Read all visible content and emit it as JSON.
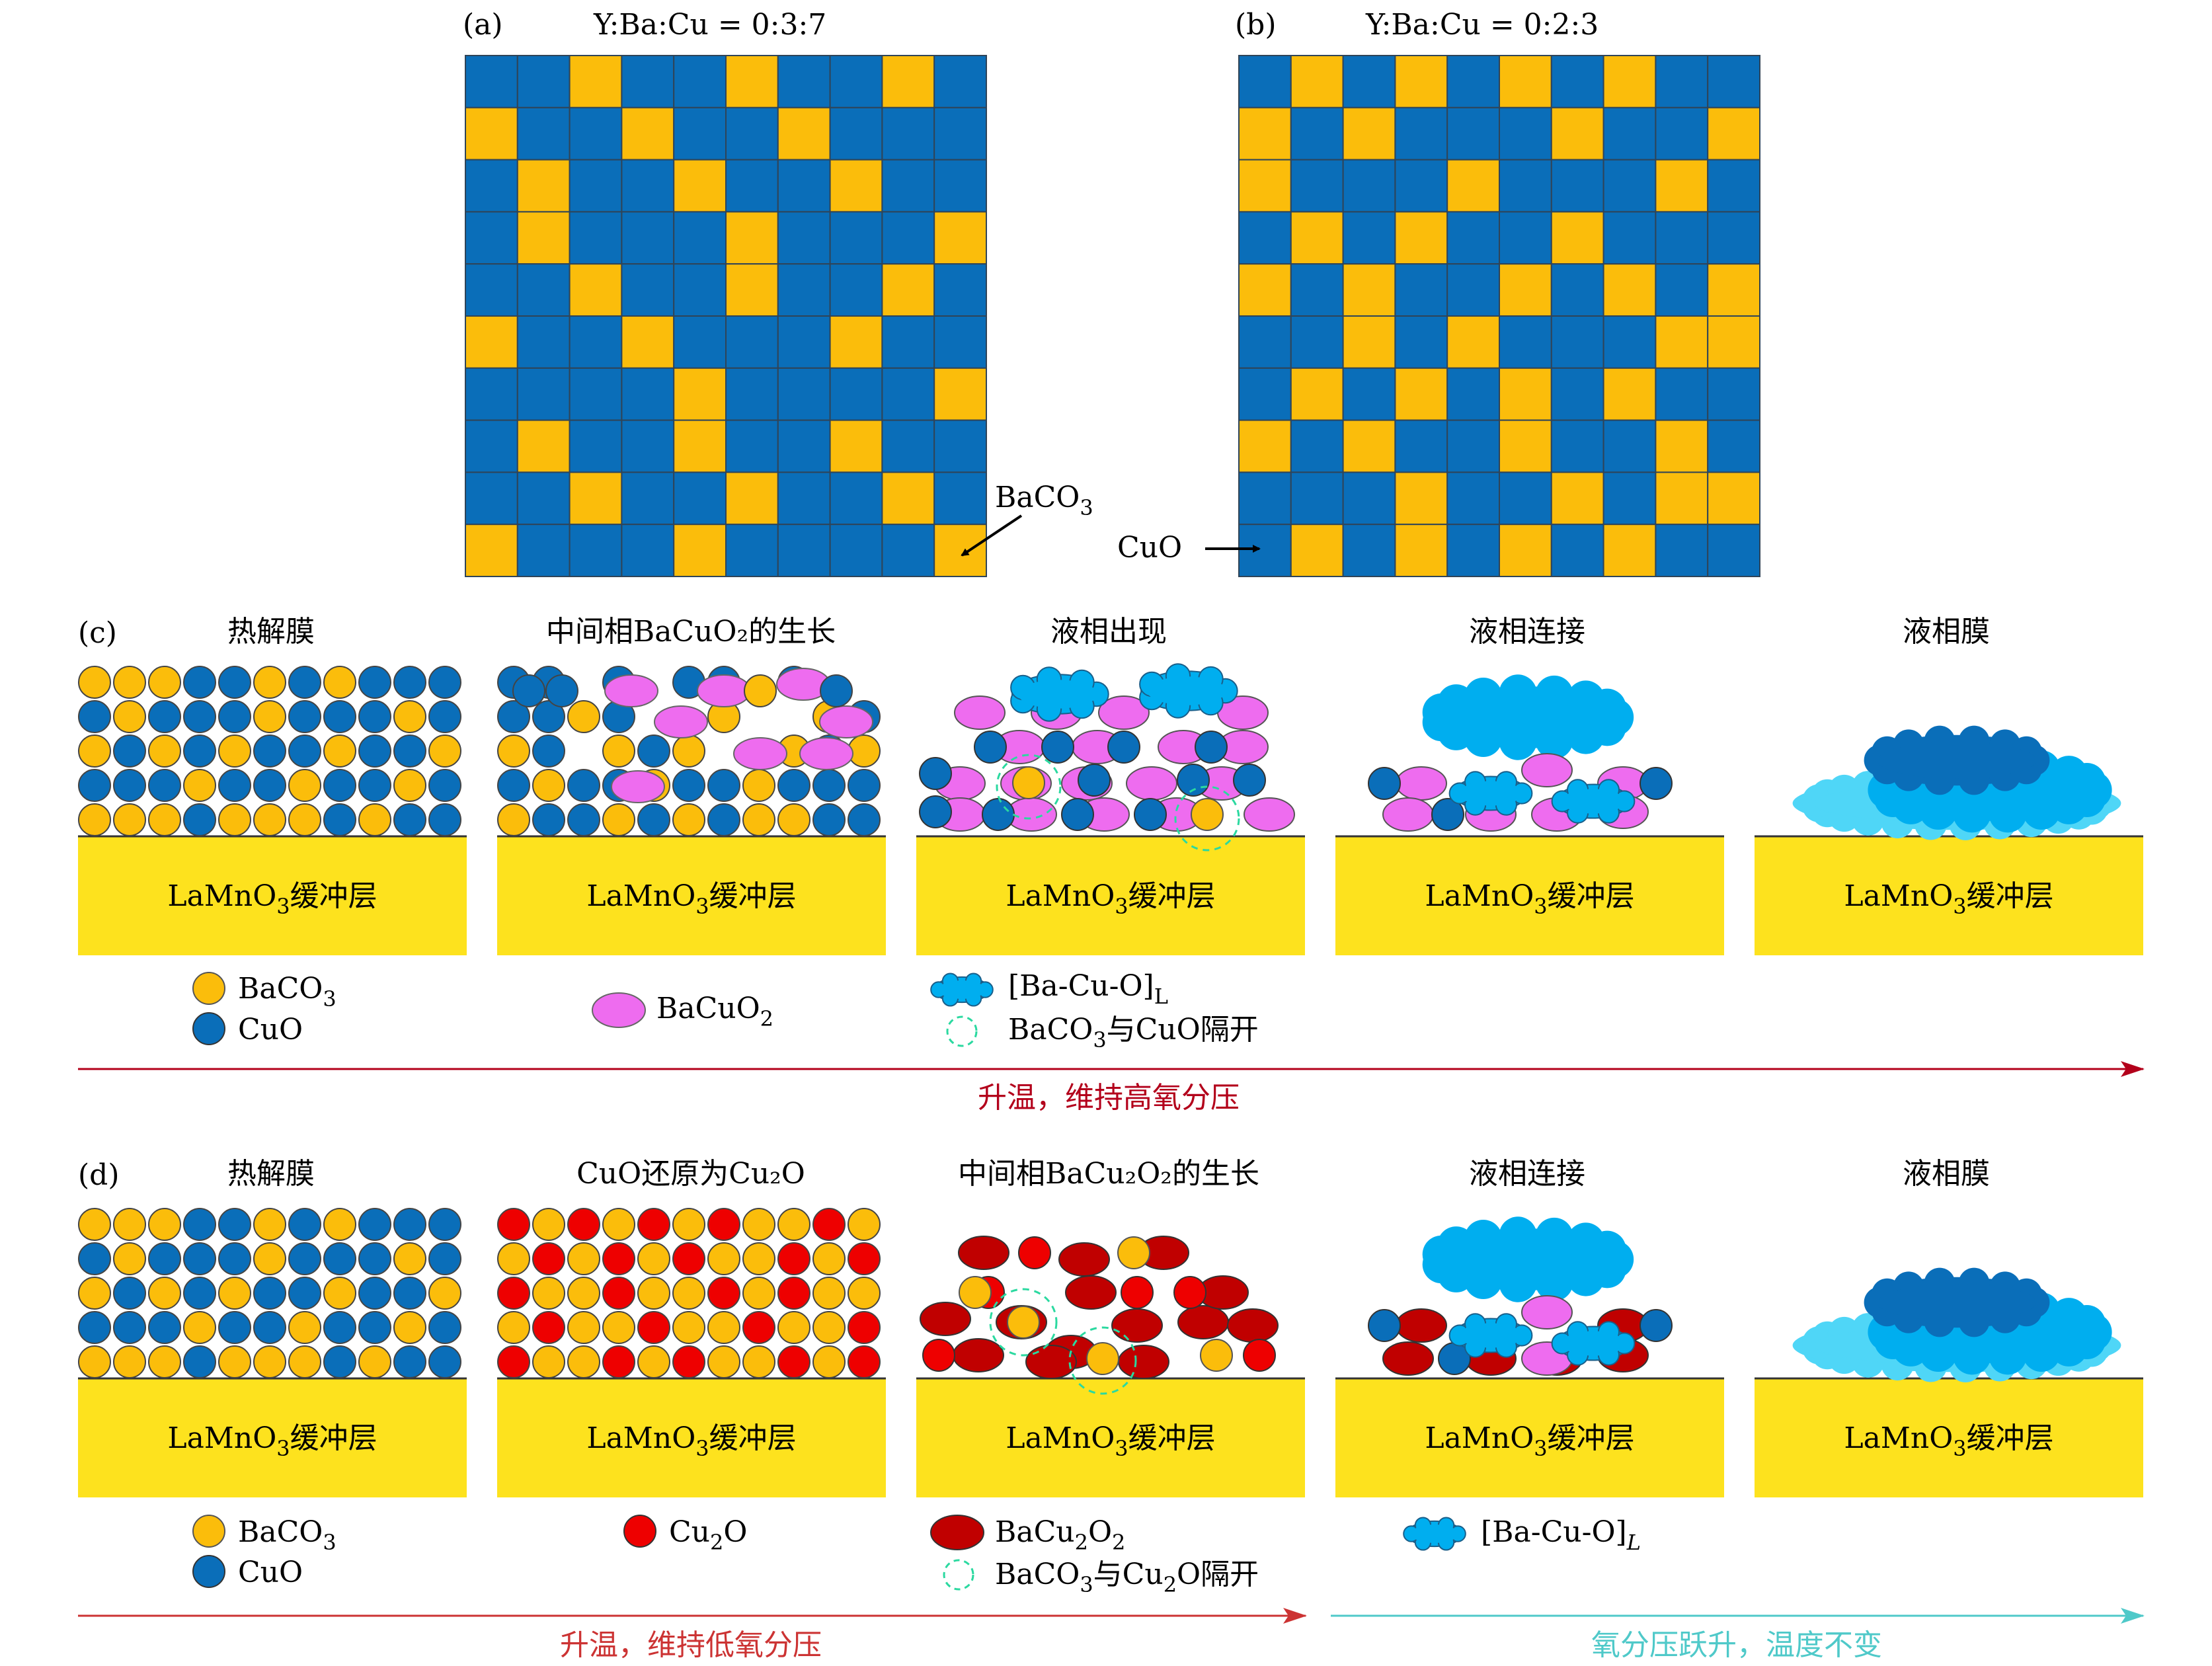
{
  "panel_a": {
    "label": "(a)",
    "ratio": "Y:Ba:Cu = 0:3:7",
    "pointer_label_main": "BaCO",
    "pointer_label_sub": "3",
    "grid": [
      [
        0,
        0,
        1,
        0,
        0,
        1,
        0,
        0,
        1,
        0
      ],
      [
        1,
        0,
        0,
        1,
        0,
        0,
        1,
        0,
        0,
        0
      ],
      [
        0,
        1,
        0,
        0,
        1,
        0,
        0,
        1,
        0,
        0
      ],
      [
        0,
        1,
        0,
        0,
        0,
        1,
        0,
        0,
        0,
        1
      ],
      [
        0,
        0,
        1,
        0,
        0,
        1,
        0,
        0,
        1,
        0
      ],
      [
        1,
        0,
        0,
        1,
        0,
        0,
        0,
        1,
        0,
        0
      ],
      [
        0,
        0,
        0,
        0,
        1,
        0,
        0,
        0,
        0,
        1
      ],
      [
        0,
        1,
        0,
        0,
        1,
        0,
        0,
        1,
        0,
        0
      ],
      [
        0,
        0,
        1,
        0,
        0,
        1,
        0,
        0,
        1,
        0
      ],
      [
        1,
        0,
        0,
        0,
        1,
        0,
        0,
        0,
        0,
        1
      ]
    ]
  },
  "panel_b": {
    "label": "(b)",
    "ratio": "Y:Ba:Cu = 0:2:3",
    "pointer_label": "CuO",
    "grid": [
      [
        0,
        1,
        0,
        1,
        0,
        1,
        0,
        1,
        0,
        0
      ],
      [
        1,
        0,
        1,
        0,
        0,
        0,
        1,
        0,
        0,
        1
      ],
      [
        1,
        0,
        0,
        0,
        1,
        0,
        0,
        0,
        1,
        0
      ],
      [
        0,
        1,
        0,
        1,
        0,
        0,
        1,
        0,
        0,
        0
      ],
      [
        1,
        0,
        1,
        0,
        0,
        1,
        0,
        1,
        0,
        1
      ],
      [
        0,
        0,
        1,
        0,
        1,
        0,
        0,
        0,
        1,
        1
      ],
      [
        0,
        1,
        0,
        1,
        0,
        1,
        0,
        1,
        0,
        0
      ],
      [
        1,
        0,
        1,
        0,
        0,
        1,
        0,
        0,
        1,
        0
      ],
      [
        0,
        0,
        0,
        1,
        0,
        0,
        1,
        0,
        1,
        1
      ],
      [
        0,
        1,
        0,
        1,
        0,
        1,
        0,
        1,
        0,
        0
      ]
    ]
  },
  "panel_c": {
    "label": "(c)",
    "stage_titles": [
      "热解膜",
      "中间相BaCuO₂的生长",
      "液相出现",
      "液相连接",
      "液相膜"
    ],
    "buffer": {
      "main": "LaMnO",
      "sub": "3",
      "suffix": "缓冲层"
    },
    "legend": {
      "baco3": {
        "main": "BaCO",
        "sub": "3"
      },
      "cuo": "CuO",
      "bacuo2": {
        "main": "BaCuO",
        "sub": "2"
      },
      "liquid": {
        "main": "[Ba-Cu-O]",
        "sub": "L"
      },
      "separated": {
        "pre": "BaCO",
        "sub": "3",
        "post": "与CuO隔开"
      }
    },
    "arrow_text": "升温，维持高氧分压"
  },
  "panel_d": {
    "label": "(d)",
    "stage_titles": [
      "热解膜",
      "CuO还原为Cu₂O",
      "中间相BaCu₂O₂的生长",
      "液相连接",
      "液相膜"
    ],
    "buffer": {
      "main": "LaMnO",
      "sub": "3",
      "suffix": "缓冲层"
    },
    "legend": {
      "baco3": {
        "main": "BaCO",
        "sub": "3"
      },
      "cuo": "CuO",
      "cu2o": {
        "main": "Cu",
        "sub": "2",
        "post": "O"
      },
      "bacu2o2": {
        "pre": "BaCu",
        "sub1": "2",
        "mid": "O",
        "sub2": "2"
      },
      "separated": {
        "pre": "BaCO",
        "sub1": "3",
        "mid": "与Cu",
        "sub2": "2",
        "post": "O隔开"
      },
      "liquid": {
        "main": "[Ba-Cu-O]",
        "sub": "L"
      }
    },
    "arrow_text_left": "升温，维持低氧分压",
    "arrow_text_right": "氧分压跃升，温度不变"
  },
  "colors": {
    "blue_tile": "#0a6eb9",
    "yellow_tile": "#fbbd0b",
    "baco3": "#fbbd0b",
    "cuo": "#0a6eb9",
    "cu2o": "#ee0000",
    "bacuo2": "#ee6cef",
    "bacu2o2": "#c00000",
    "liquid_light": "#00aeef",
    "liquid_dark": "#0a6eb9",
    "liquid_pale": "#4fd6f7",
    "buffer": "#fde21e",
    "dashed_circle": "#2bd9a0",
    "arrow_red": "#b3001b",
    "arrow_red2": "#cc3333",
    "arrow_teal": "#4fc9c9"
  }
}
